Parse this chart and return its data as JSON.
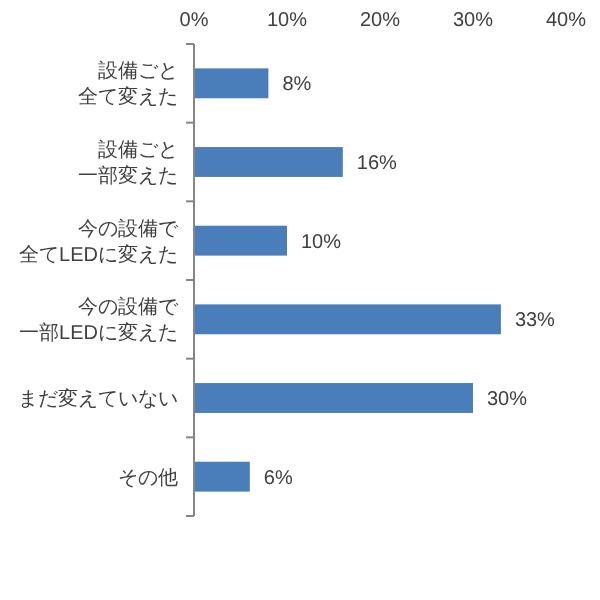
{
  "chart_data": {
    "type": "bar",
    "orientation": "horizontal",
    "categories": [
      "設備ごと全て変えた",
      "設備ごと一部変えた",
      "今の設備で全てLEDに変えた",
      "今の設備で一部LEDに変えた",
      "まだ変えていない",
      "その他"
    ],
    "values": [
      8,
      16,
      10,
      33,
      30,
      6
    ],
    "value_labels": [
      "8%",
      "16%",
      "10%",
      "33%",
      "30%",
      "6%"
    ],
    "color": "#4a7ebb",
    "xlim": [
      0,
      40
    ],
    "xticks": [
      {
        "value": 0,
        "label": "0%"
      },
      {
        "value": 10,
        "label": "10%"
      },
      {
        "value": 20,
        "label": "20%"
      },
      {
        "value": 30,
        "label": "30%"
      },
      {
        "value": 40,
        "label": "40%"
      }
    ],
    "grid": false
  }
}
